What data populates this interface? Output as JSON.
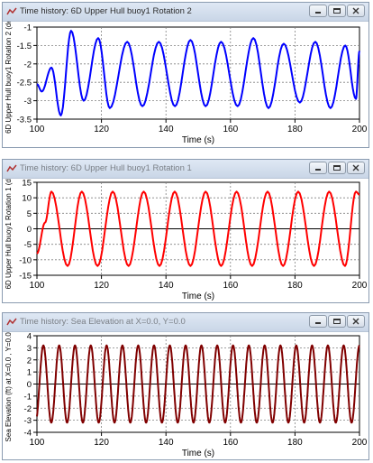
{
  "windows": [
    {
      "title": "Time history: 6D Upper Hull buoy1 Rotation 2",
      "active": true
    },
    {
      "title": "Time history: 6D Upper Hull buoy1 Rotation 1",
      "active": false
    },
    {
      "title": "Time history: Sea Elevation at X=0.0, Y=0.0",
      "active": false
    }
  ],
  "window_icons": [
    "app-icon",
    "minimize-icon",
    "maximize-icon",
    "close-icon"
  ],
  "chart_data": [
    {
      "type": "line",
      "title": "",
      "xlabel": "Time (s)",
      "ylabel": "6D Upper Hull buoy1 Rotation 2 (deg)",
      "xlim": [
        100,
        200
      ],
      "ylim": [
        -3.5,
        -1
      ],
      "xticks": [
        100,
        120,
        140,
        160,
        180,
        200
      ],
      "yticks": [
        -1,
        -1.5,
        -2,
        -2.5,
        -3,
        -3.5
      ],
      "ytick_labels": [
        "-1",
        "-1.5",
        "-2",
        "-2.5",
        "-3",
        "-3.5"
      ],
      "zero_line": false,
      "grid": true,
      "color": "#0000ff",
      "series": [
        {
          "x": [
            100,
            101.5,
            104.5,
            107.4,
            110.6,
            114.5,
            119,
            122.6,
            128,
            132.7,
            137.8,
            142.8,
            147.6,
            152.3,
            157.1,
            162.2,
            167.1,
            171.8,
            176.5,
            181.5,
            186.3,
            191.0,
            195.6,
            198.9,
            200
          ],
          "y": [
            -2.55,
            -2.75,
            -2.1,
            -3.4,
            -1.1,
            -3.0,
            -1.3,
            -3.2,
            -1.4,
            -3.15,
            -1.4,
            -3.15,
            -1.35,
            -3.15,
            -1.4,
            -3.15,
            -1.3,
            -3.2,
            -1.45,
            -3.05,
            -1.4,
            -3.2,
            -1.5,
            -2.95,
            -1.65
          ]
        }
      ]
    },
    {
      "type": "line",
      "title": "",
      "xlabel": "Time (s)",
      "ylabel": "6D Upper Hull buoy1 Rotation 1 (deg)",
      "xlim": [
        100,
        200
      ],
      "ylim": [
        -15,
        15
      ],
      "xticks": [
        100,
        120,
        140,
        160,
        180,
        200
      ],
      "yticks": [
        15,
        10,
        5,
        0,
        -5,
        -10,
        -15
      ],
      "ytick_labels": [
        "15",
        "10",
        "5",
        "0",
        "-5",
        "-10",
        "-15"
      ],
      "zero_line": true,
      "grid": true,
      "color": "#ff0000",
      "series": [
        {
          "x": [
            100,
            102.5,
            104.5,
            109.5,
            113.9,
            118.8,
            123.5,
            128.4,
            133.1,
            138.0,
            142.7,
            147.6,
            152.3,
            157.1,
            161.9,
            166.7,
            171.5,
            176.3,
            181.0,
            185.9,
            190.6,
            195.5,
            198.9,
            200
          ],
          "y": [
            -8,
            2,
            12,
            -12,
            12,
            -12,
            12,
            -12,
            12,
            -12,
            12,
            -12,
            12,
            -12,
            12,
            -12,
            12,
            -12,
            12,
            -12,
            12,
            -12,
            12,
            11
          ]
        }
      ]
    },
    {
      "type": "line",
      "title": "",
      "xlabel": "Time (s)",
      "ylabel": "Sea Elevation (ft) at X=0.0 , Y=0.0 ft",
      "xlim": [
        100,
        200
      ],
      "ylim": [
        -4,
        4
      ],
      "xticks": [
        100,
        120,
        140,
        160,
        180,
        200
      ],
      "yticks": [
        4,
        3,
        2,
        1,
        0,
        -1,
        -2,
        -3,
        -4
      ],
      "ytick_labels": [
        "4",
        "3",
        "2",
        "1",
        "0",
        "-1",
        "-2",
        "-3",
        "-4"
      ],
      "zero_line": true,
      "grid": true,
      "color": "#800000",
      "series": [
        {
          "period": 4.9,
          "amplitude": 3.2,
          "first_peak": 102
        }
      ]
    }
  ]
}
